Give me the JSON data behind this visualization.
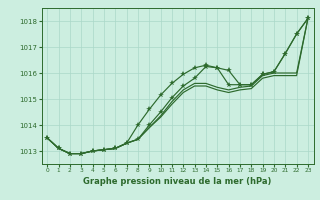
{
  "x_hours": [
    0,
    1,
    2,
    3,
    4,
    5,
    6,
    7,
    8,
    9,
    10,
    11,
    12,
    13,
    14,
    15,
    16,
    17,
    18,
    19,
    20,
    21,
    22,
    23
  ],
  "line1_marked": [
    1013.5,
    1013.1,
    1012.9,
    1012.9,
    1013.0,
    1013.05,
    1013.1,
    1013.3,
    1014.0,
    1014.6,
    1015.15,
    1015.6,
    1015.95,
    1016.2,
    1016.3,
    1016.2,
    1016.1,
    1015.55,
    1015.55,
    1015.95,
    1016.05,
    1016.75,
    1017.5,
    1018.1
  ],
  "line2_marked": [
    1013.5,
    1013.1,
    1012.9,
    1012.9,
    1013.0,
    1013.05,
    1013.1,
    1013.3,
    1013.45,
    1014.0,
    1014.5,
    1015.05,
    1015.5,
    1015.8,
    1016.25,
    1016.2,
    1015.55,
    1015.55,
    1015.55,
    1015.95,
    1016.05,
    1016.75,
    1017.5,
    1018.1
  ],
  "line3": [
    1013.5,
    1013.1,
    1012.9,
    1012.9,
    1013.0,
    1013.05,
    1013.1,
    1013.3,
    1013.45,
    1013.9,
    1014.35,
    1014.9,
    1015.35,
    1015.6,
    1015.6,
    1015.45,
    1015.35,
    1015.45,
    1015.5,
    1015.9,
    1016.0,
    1016.0,
    1016.0,
    1018.1
  ],
  "line4": [
    1013.5,
    1013.1,
    1012.9,
    1012.9,
    1013.0,
    1013.05,
    1013.1,
    1013.3,
    1013.45,
    1013.9,
    1014.3,
    1014.8,
    1015.25,
    1015.5,
    1015.5,
    1015.35,
    1015.25,
    1015.35,
    1015.4,
    1015.8,
    1015.9,
    1015.9,
    1015.9,
    1018.1
  ],
  "line_color": "#2d6a2d",
  "bg_color": "#cceee0",
  "grid_color": "#aad8c8",
  "xlabel": "Graphe pression niveau de la mer (hPa)",
  "ylim": [
    1012.5,
    1018.5
  ],
  "xlim": [
    -0.5,
    23.5
  ],
  "yticks": [
    1013,
    1014,
    1015,
    1016,
    1017,
    1018
  ],
  "xticks": [
    0,
    1,
    2,
    3,
    4,
    5,
    6,
    7,
    8,
    9,
    10,
    11,
    12,
    13,
    14,
    15,
    16,
    17,
    18,
    19,
    20,
    21,
    22,
    23
  ]
}
